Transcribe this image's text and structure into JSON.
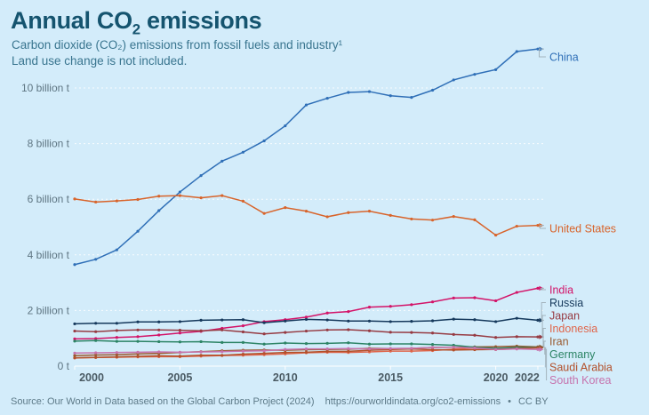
{
  "header": {
    "title": {
      "prefix": "Annual CO",
      "subscript": "2",
      "suffix": " emissions"
    },
    "subtitle_line1": "Carbon dioxide (CO₂) emissions from fossil fuels and industry¹",
    "subtitle_line2": "Land use change is not included."
  },
  "footer": {
    "source": "Source: Our World in Data based on the Global Carbon Project (2024)",
    "url": "https://ourworldindata.org/co2-emissions",
    "separator": "•",
    "license": "CC BY"
  },
  "colors": {
    "background": "#d3ecfa",
    "title": "#15546f",
    "subtitle": "#39758f",
    "grid": "#ffffff",
    "axis_text": "#5f7683",
    "year_text": "#4a5a63",
    "connector": "#a3b4bd"
  },
  "chart_data": {
    "type": "line",
    "title": "Annual CO₂ emissions",
    "unit": "billion t",
    "xlabel": "",
    "ylabel": "",
    "x": [
      2000,
      2001,
      2002,
      2003,
      2004,
      2005,
      2006,
      2007,
      2008,
      2009,
      2010,
      2011,
      2012,
      2013,
      2014,
      2015,
      2016,
      2017,
      2018,
      2019,
      2020,
      2021,
      2022
    ],
    "xtick_labels": [
      "2000",
      "2005",
      "2010",
      "2015",
      "2020",
      "2022"
    ],
    "xticks": [
      2000,
      2005,
      2010,
      2015,
      2020,
      2022
    ],
    "ylim": [
      0,
      11.6
    ],
    "yticks": [
      0,
      2,
      4,
      6,
      8,
      10
    ],
    "ytick_labels": [
      "0 t",
      "2 billion t",
      "4 billion t",
      "6 billion t",
      "8 billion t",
      "10 billion t"
    ],
    "grid": "dashed horizontal white",
    "legend_position": "right-edge-labels",
    "series": [
      {
        "name": "China",
        "color": "#2f6fb7",
        "values": [
          3.65,
          3.84,
          4.18,
          4.85,
          5.59,
          6.26,
          6.85,
          7.37,
          7.69,
          8.1,
          8.64,
          9.39,
          9.63,
          9.84,
          9.87,
          9.72,
          9.66,
          9.92,
          10.29,
          10.49,
          10.66,
          11.31,
          11.4
        ]
      },
      {
        "name": "United States",
        "color": "#d8642b",
        "values": [
          6.01,
          5.9,
          5.94,
          5.99,
          6.11,
          6.13,
          6.05,
          6.13,
          5.93,
          5.49,
          5.7,
          5.57,
          5.37,
          5.52,
          5.57,
          5.42,
          5.29,
          5.25,
          5.38,
          5.26,
          4.71,
          5.03,
          5.06
        ]
      },
      {
        "name": "India",
        "color": "#d31368",
        "values": [
          0.98,
          0.99,
          1.03,
          1.06,
          1.12,
          1.19,
          1.25,
          1.36,
          1.45,
          1.6,
          1.67,
          1.76,
          1.91,
          1.96,
          2.12,
          2.15,
          2.21,
          2.31,
          2.45,
          2.46,
          2.35,
          2.65,
          2.8
        ]
      },
      {
        "name": "Russia",
        "color": "#16395c",
        "values": [
          1.52,
          1.54,
          1.54,
          1.59,
          1.59,
          1.6,
          1.65,
          1.66,
          1.67,
          1.56,
          1.62,
          1.68,
          1.66,
          1.62,
          1.62,
          1.6,
          1.61,
          1.63,
          1.69,
          1.67,
          1.6,
          1.72,
          1.65
        ]
      },
      {
        "name": "Japan",
        "color": "#963a42",
        "values": [
          1.26,
          1.24,
          1.28,
          1.3,
          1.3,
          1.29,
          1.27,
          1.3,
          1.23,
          1.16,
          1.21,
          1.26,
          1.3,
          1.31,
          1.27,
          1.22,
          1.21,
          1.19,
          1.14,
          1.11,
          1.03,
          1.06,
          1.05
        ]
      },
      {
        "name": "Indonesia",
        "color": "#e0654a",
        "values": [
          0.29,
          0.31,
          0.32,
          0.33,
          0.34,
          0.34,
          0.36,
          0.38,
          0.39,
          0.41,
          0.44,
          0.48,
          0.5,
          0.49,
          0.51,
          0.54,
          0.54,
          0.56,
          0.61,
          0.65,
          0.6,
          0.62,
          0.69
        ]
      },
      {
        "name": "Iran",
        "color": "#99592e",
        "values": [
          0.38,
          0.4,
          0.41,
          0.44,
          0.46,
          0.49,
          0.52,
          0.55,
          0.57,
          0.58,
          0.57,
          0.59,
          0.6,
          0.61,
          0.64,
          0.63,
          0.64,
          0.67,
          0.68,
          0.69,
          0.7,
          0.72,
          0.69
        ]
      },
      {
        "name": "Germany",
        "color": "#2c8465",
        "values": [
          0.9,
          0.92,
          0.89,
          0.89,
          0.88,
          0.87,
          0.88,
          0.85,
          0.85,
          0.79,
          0.83,
          0.81,
          0.82,
          0.84,
          0.79,
          0.8,
          0.8,
          0.78,
          0.75,
          0.68,
          0.64,
          0.67,
          0.67
        ]
      },
      {
        "name": "Saudi Arabia",
        "color": "#b3502a",
        "values": [
          0.3,
          0.31,
          0.33,
          0.35,
          0.37,
          0.36,
          0.39,
          0.39,
          0.43,
          0.46,
          0.49,
          0.5,
          0.53,
          0.53,
          0.57,
          0.6,
          0.62,
          0.59,
          0.58,
          0.59,
          0.6,
          0.63,
          0.66
        ]
      },
      {
        "name": "South Korea",
        "color": "#c673ad",
        "values": [
          0.47,
          0.48,
          0.49,
          0.5,
          0.51,
          0.5,
          0.51,
          0.52,
          0.54,
          0.55,
          0.6,
          0.62,
          0.62,
          0.63,
          0.62,
          0.63,
          0.64,
          0.67,
          0.68,
          0.65,
          0.6,
          0.62,
          0.6
        ]
      }
    ]
  }
}
